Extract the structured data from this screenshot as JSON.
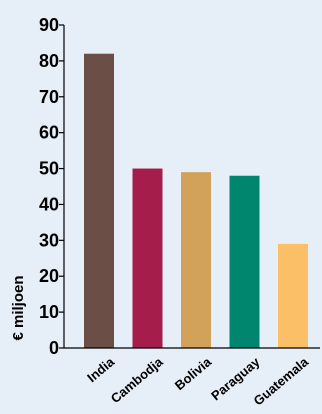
{
  "chart_data": {
    "type": "bar",
    "categories": [
      "India",
      "Cambodja",
      "Bolivia",
      "Paraguay",
      "Guatemala"
    ],
    "values": [
      82,
      50,
      49,
      48,
      29
    ],
    "colors": [
      "#6b4f47",
      "#a51d4a",
      "#d3a25a",
      "#00856f",
      "#fbbf68"
    ],
    "ylabel": "€ miljoen",
    "ylim": [
      0,
      90
    ],
    "yticks": [
      0,
      10,
      20,
      30,
      40,
      50,
      60,
      70,
      80,
      90
    ],
    "background": "#e6eef8",
    "grid": false
  }
}
